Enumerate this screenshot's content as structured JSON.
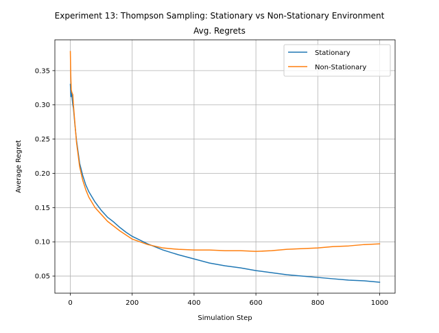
{
  "chart_data": {
    "type": "line",
    "title": "Experiment 13: Thompson Sampling: Stationary vs Non-Stationary Environment",
    "subtitle": "Avg. Regrets",
    "xlabel": "Simulation Step",
    "ylabel": "Average Regret",
    "xlim": [
      -50,
      1050
    ],
    "ylim": [
      0.025,
      0.395
    ],
    "xticks": [
      0,
      200,
      400,
      600,
      800,
      1000
    ],
    "xtick_labels": [
      "0",
      "200",
      "400",
      "600",
      "800",
      "1000"
    ],
    "yticks": [
      0.05,
      0.1,
      0.15,
      0.2,
      0.25,
      0.3,
      0.35
    ],
    "ytick_labels": [
      "0.05",
      "0.10",
      "0.15",
      "0.20",
      "0.25",
      "0.30",
      "0.35"
    ],
    "grid": true,
    "legend": "top-right",
    "series": [
      {
        "name": "Stationary",
        "color": "#1f77b4",
        "x": [
          0,
          2,
          4,
          6,
          8,
          10,
          15,
          20,
          30,
          40,
          50,
          60,
          80,
          100,
          120,
          140,
          160,
          180,
          200,
          250,
          300,
          350,
          400,
          450,
          500,
          550,
          600,
          650,
          700,
          750,
          800,
          850,
          900,
          950,
          1000
        ],
        "y": [
          0.33,
          0.312,
          0.318,
          0.308,
          0.3,
          0.295,
          0.27,
          0.248,
          0.215,
          0.197,
          0.183,
          0.173,
          0.158,
          0.146,
          0.136,
          0.129,
          0.121,
          0.114,
          0.108,
          0.097,
          0.088,
          0.081,
          0.075,
          0.069,
          0.065,
          0.062,
          0.058,
          0.055,
          0.052,
          0.05,
          0.048,
          0.046,
          0.044,
          0.043,
          0.041
        ]
      },
      {
        "name": "Non-Stationary",
        "color": "#ff7f0e",
        "x": [
          0,
          1,
          2,
          3,
          5,
          8,
          10,
          15,
          20,
          30,
          40,
          50,
          60,
          80,
          100,
          120,
          140,
          160,
          180,
          200,
          250,
          300,
          350,
          400,
          450,
          500,
          550,
          600,
          650,
          700,
          750,
          800,
          850,
          900,
          950,
          1000
        ],
        "y": [
          0.378,
          0.35,
          0.335,
          0.322,
          0.318,
          0.315,
          0.3,
          0.272,
          0.245,
          0.21,
          0.19,
          0.176,
          0.165,
          0.15,
          0.14,
          0.13,
          0.123,
          0.116,
          0.11,
          0.104,
          0.096,
          0.091,
          0.089,
          0.088,
          0.088,
          0.087,
          0.087,
          0.086,
          0.087,
          0.089,
          0.09,
          0.091,
          0.093,
          0.094,
          0.096,
          0.097
        ]
      }
    ]
  }
}
